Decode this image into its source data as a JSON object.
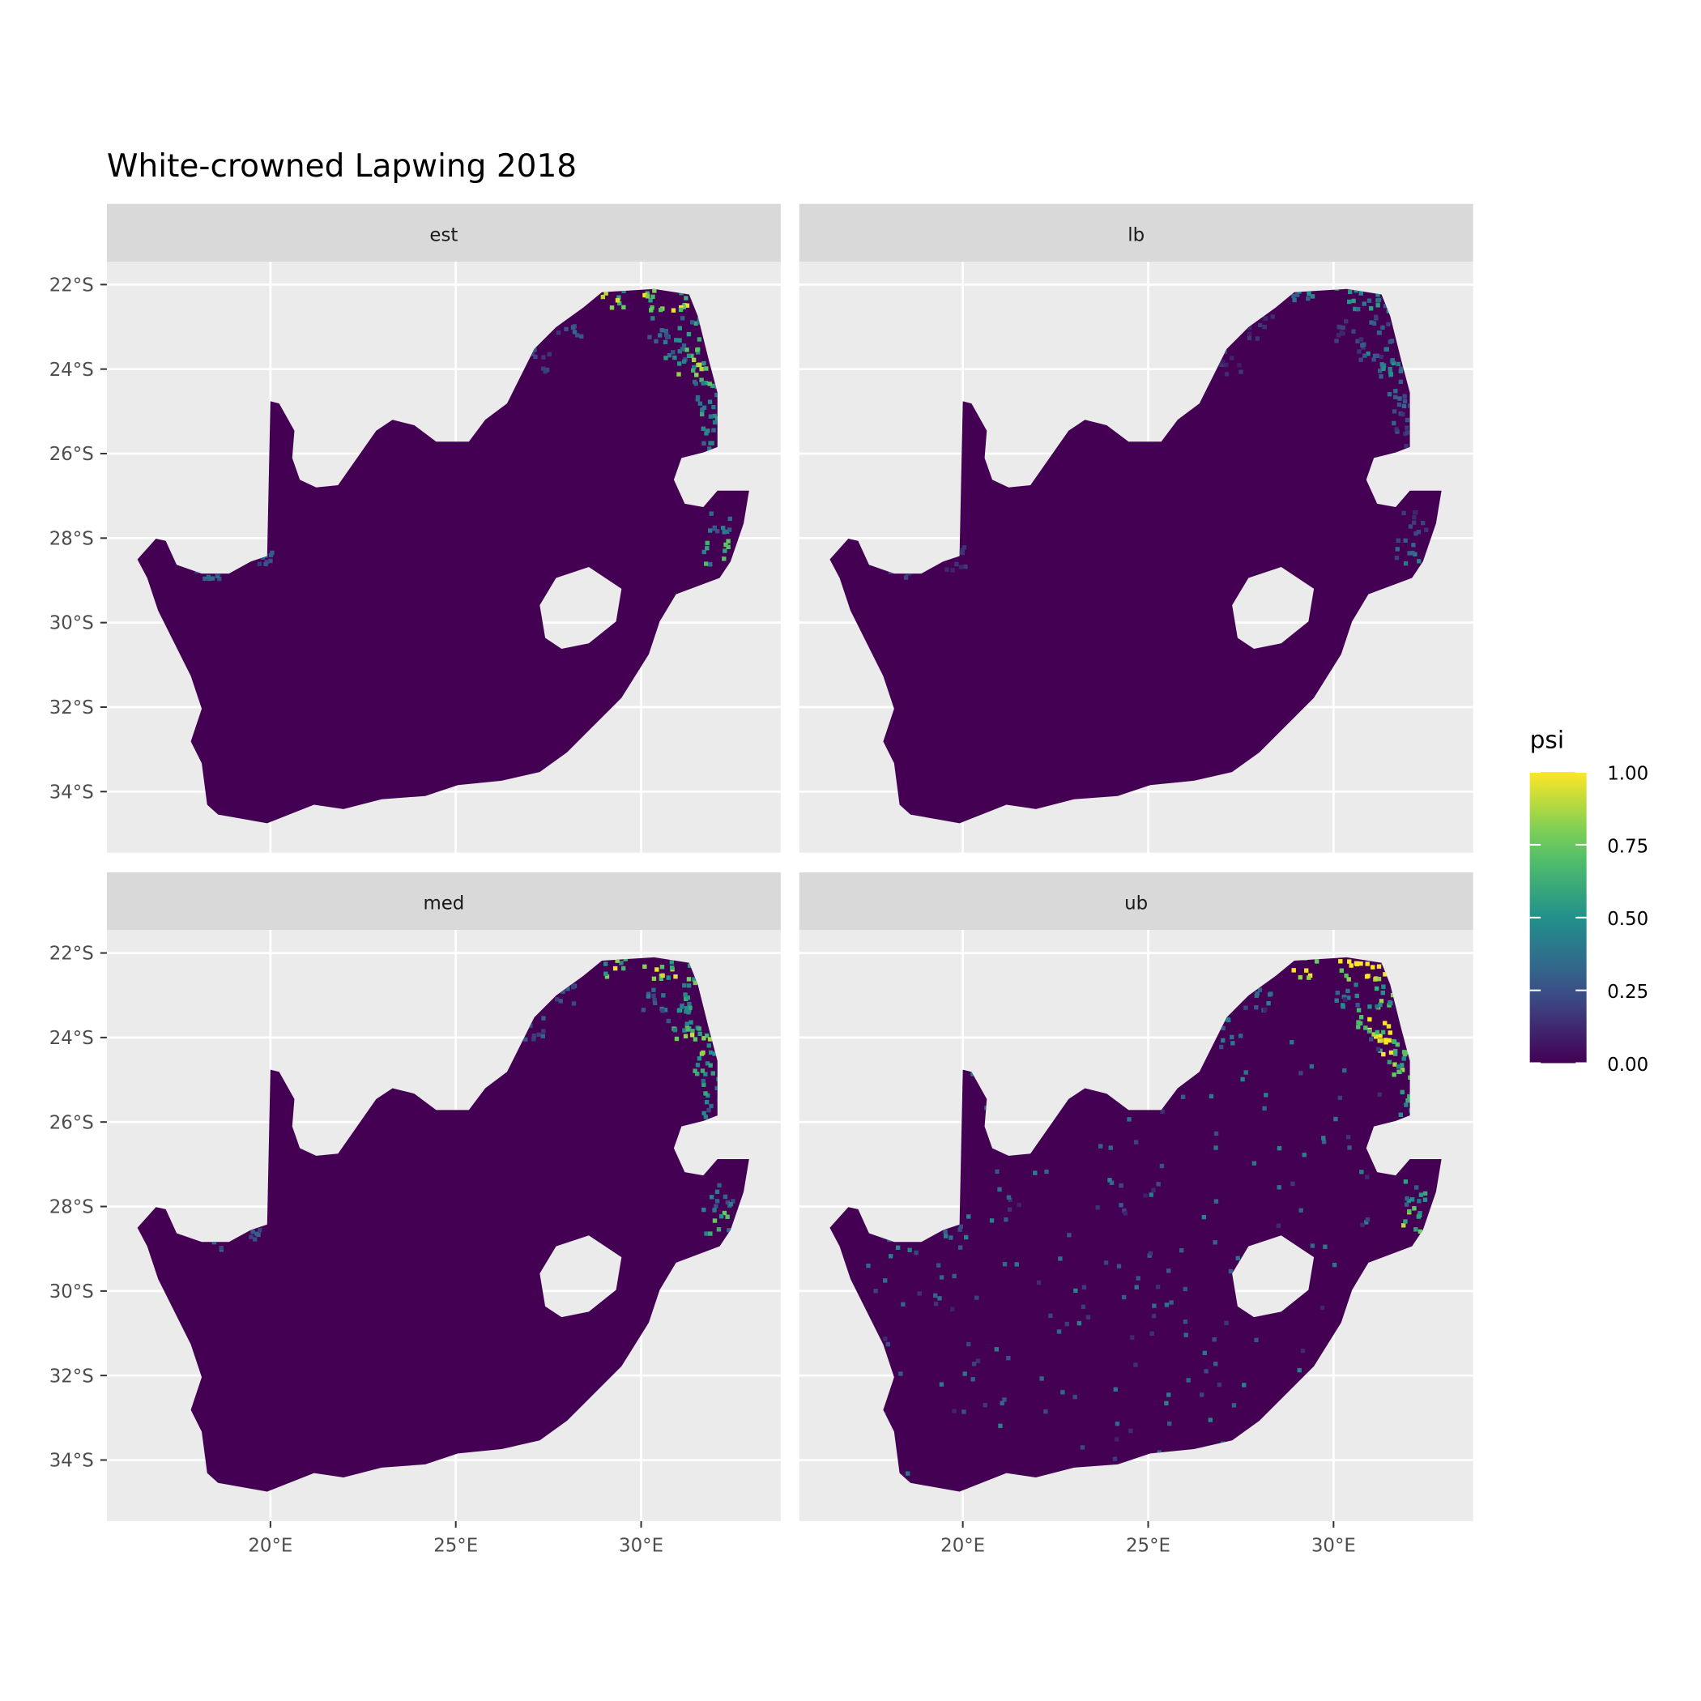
{
  "chart_data": {
    "type": "heatmap",
    "title": "White-crowned Lapwing 2018",
    "facets": [
      "est",
      "lb",
      "med",
      "ub"
    ],
    "x_ticks": [
      "20°E",
      "25°E",
      "30°E"
    ],
    "x_tick_values": [
      20,
      25,
      30
    ],
    "y_ticks": [
      "22°S",
      "24°S",
      "26°S",
      "28°S",
      "30°S",
      "32°S",
      "34°S"
    ],
    "y_tick_values": [
      -22,
      -24,
      -26,
      -28,
      -30,
      -32,
      -34
    ],
    "xlim": [
      15.6,
      33.8
    ],
    "ylim": [
      -35.4,
      -21.5
    ],
    "grid": true,
    "legend": {
      "title": "psi",
      "position": "right",
      "colormap": "viridis",
      "range": [
        0,
        1
      ],
      "labels": [
        "1.00",
        "0.75",
        "0.50",
        "0.25",
        "0.00"
      ],
      "label_values": [
        1.0,
        0.75,
        0.5,
        0.25,
        0.0
      ]
    },
    "description_levels": {
      "est": 1.0,
      "lb": 0.55,
      "med": 1.0,
      "ub": 1.35
    },
    "colors": {
      "panel_bg": "#ebebeb",
      "strip_bg": "#d9d9d9",
      "grid": "#ffffff",
      "low": "#440154",
      "high": "#fde725"
    }
  }
}
